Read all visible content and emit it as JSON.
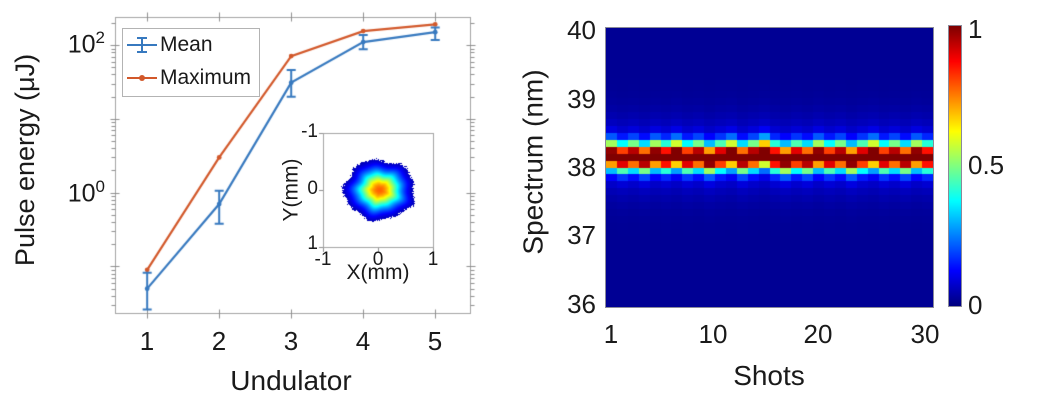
{
  "colors": {
    "mean_line": "#3779bf",
    "max_line": "#d2582a",
    "axis": "#a3a3a3",
    "tick": "#8f8f8f",
    "text": "#1a1a1a",
    "legend_border": "#b3b3b3"
  },
  "left_panel": {
    "ylabel": "Pulse energy (μJ)",
    "xlabel": "Undulator",
    "x_tick_labels": [
      "1",
      "2",
      "3",
      "4",
      "5"
    ],
    "y_ticks": [
      {
        "mantissa": "10",
        "exp": "2"
      },
      {
        "mantissa": "10",
        "exp": "0"
      }
    ],
    "legend": {
      "items": [
        {
          "label": "Mean"
        },
        {
          "label": "Maximum"
        }
      ]
    },
    "inset": {
      "xlabel": "X(mm)",
      "ylabel": "Y(mm)",
      "x_tick_labels": [
        "-1",
        "0",
        "1"
      ],
      "y_tick_labels": [
        "-1",
        "0",
        "1"
      ]
    }
  },
  "right_panel": {
    "ylabel": "Spectrum (nm)",
    "xlabel": "Shots",
    "x_tick_labels": [
      "1",
      "10",
      "20",
      "30"
    ],
    "y_tick_labels": [
      "40",
      "39",
      "38",
      "37",
      "36"
    ],
    "colorbar_tick_labels": [
      "1",
      "0.5",
      "0"
    ]
  },
  "chart_data": [
    {
      "type": "line",
      "title": "",
      "xlabel": "Undulator",
      "ylabel": "Pulse energy (μJ)",
      "yscale": "log",
      "xlim": [
        0.56,
        5.49
      ],
      "ylim": [
        0.023,
        237
      ],
      "x": [
        1,
        2,
        3,
        4,
        5
      ],
      "x_ticks": [
        1,
        2,
        3,
        4,
        5
      ],
      "y_tick_values": [
        100,
        1
      ],
      "grid": false,
      "legend_position": "top-left",
      "series": [
        {
          "name": "Mean",
          "color": "#3779bf",
          "marker": "errorbar-dot",
          "values": [
            0.05,
            0.7,
            31,
            110,
            150
          ],
          "err_lo": [
            0.026,
            0.38,
            20,
            88,
            117
          ],
          "err_hi": [
            0.082,
            1.06,
            46,
            137,
            174
          ]
        },
        {
          "name": "Maximum",
          "color": "#d2582a",
          "marker": "dot",
          "values": [
            0.09,
            3.0,
            71,
            155,
            191
          ]
        }
      ],
      "inset": {
        "type": "beam_profile_image",
        "xlabel": "X(mm)",
        "ylabel": "Y(mm)",
        "xlim": [
          -1,
          1
        ],
        "ylim_top_to_bottom": [
          -1,
          1
        ],
        "x_ticks": [
          -1,
          0,
          1
        ],
        "y_ticks": [
          -1,
          0,
          1
        ],
        "colormap": "jet",
        "center_mm": [
          0.03,
          0.0
        ],
        "sigma_mm": [
          0.28,
          0.23
        ],
        "peak_value": 0.78
      }
    },
    {
      "type": "heatmap",
      "xlabel": "Shots",
      "ylabel": "Spectrum (nm)",
      "xlim": [
        0.5,
        30.5
      ],
      "ylim": [
        36,
        40
      ],
      "x_ticks": [
        1,
        10,
        20,
        30
      ],
      "y_ticks": [
        40,
        39,
        38,
        37,
        36
      ],
      "colormap": "jet",
      "n_shots": 30,
      "spectral_bins": 40,
      "background_value": 0.02,
      "band": {
        "centers_nm": [
          38.18,
          38.14,
          38.17,
          38.13,
          38.18,
          38.15,
          38.19,
          38.14,
          38.17,
          38.12,
          38.16,
          38.19,
          38.13,
          38.17,
          38.21,
          38.15,
          38.12,
          38.16,
          38.13,
          38.18,
          38.14,
          38.17,
          38.12,
          38.16,
          38.19,
          38.14,
          38.17,
          38.13,
          38.18,
          38.15
        ],
        "sigma_nm": 0.13,
        "peak_value": 1.0,
        "halo_sigma_nm": 0.35,
        "halo_value": 0.1
      },
      "colorbar": {
        "min": 0,
        "max": 1,
        "ticks": [
          1,
          0.5,
          0
        ]
      }
    }
  ]
}
